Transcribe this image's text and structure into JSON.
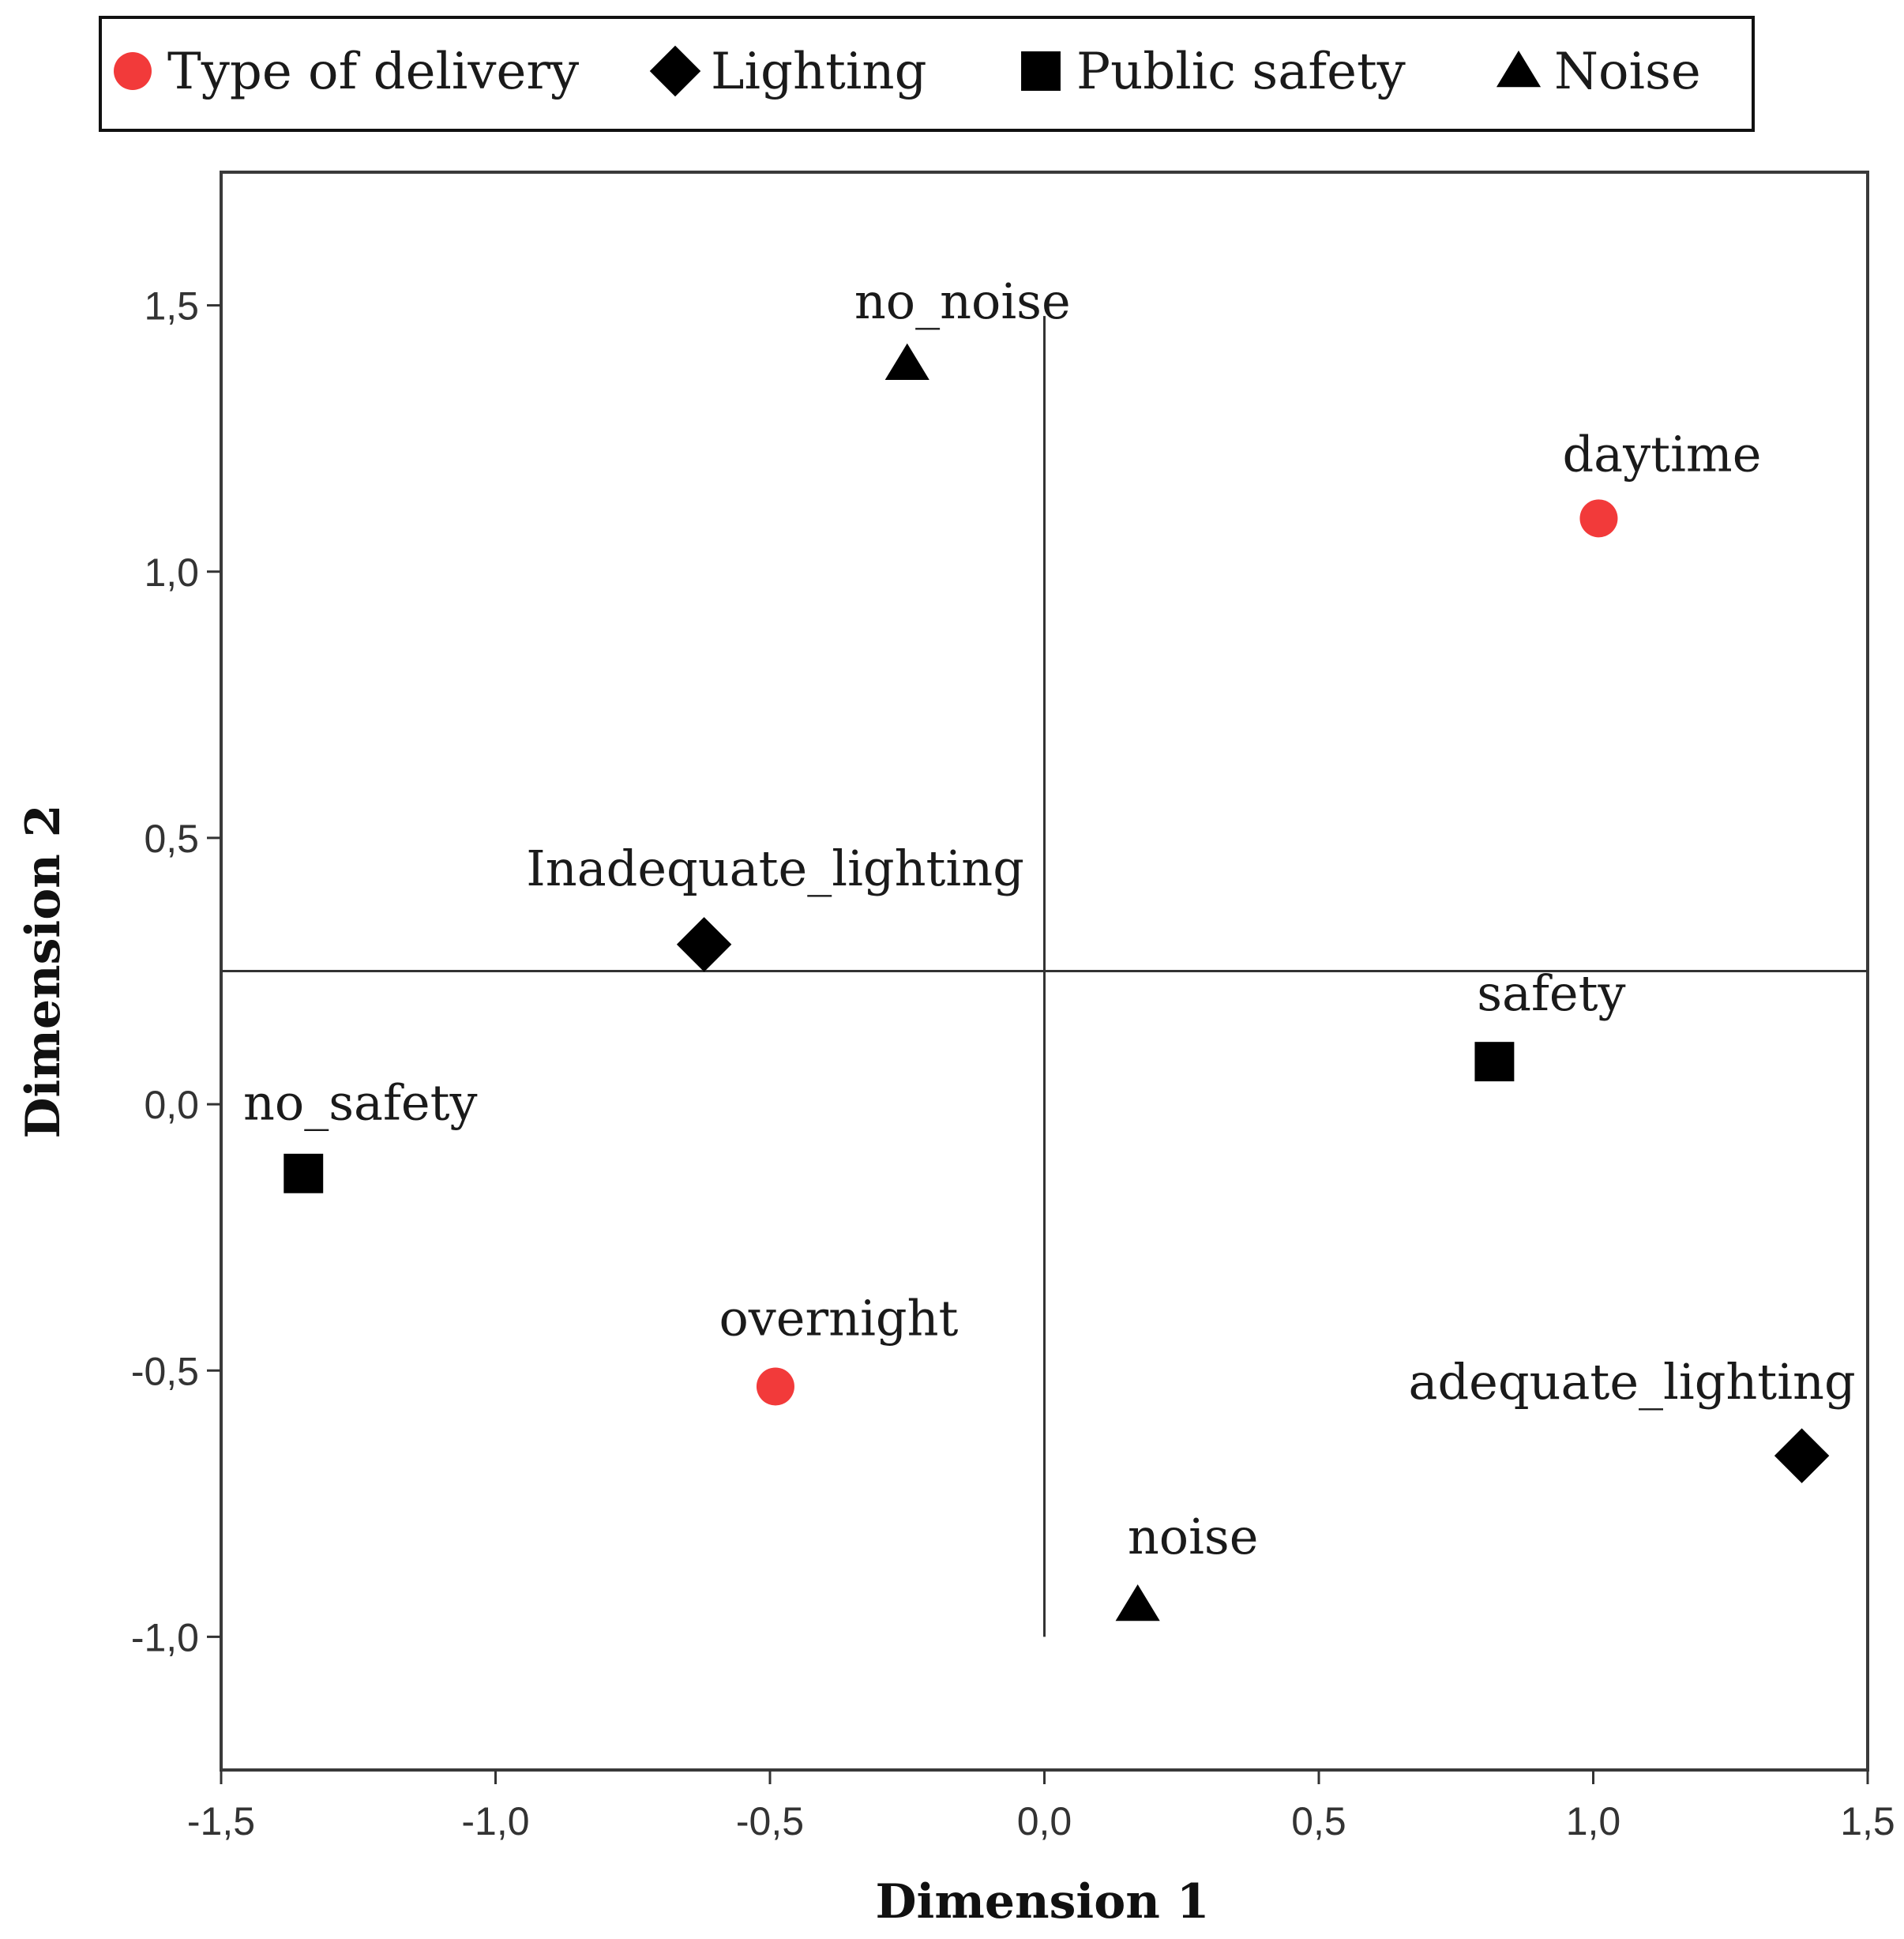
{
  "chart_data": {
    "type": "scatter",
    "title": "",
    "xlabel": "Dimension 1",
    "ylabel": "Dimension 2",
    "xlim": [
      -1.5,
      1.5
    ],
    "ylim": [
      -1.25,
      1.75
    ],
    "xticks": [
      -1.5,
      -1.0,
      -0.5,
      0.0,
      0.5,
      1.0,
      1.5
    ],
    "xtick_labels": [
      "-1,5",
      "-1,0",
      "-0,5",
      "0,0",
      "0,5",
      "1,0",
      "1,5"
    ],
    "yticks": [
      -1.0,
      -0.5,
      0.0,
      0.5,
      1.0,
      1.5
    ],
    "ytick_labels": [
      "-1,0",
      "-0,5",
      "0,0",
      "0,5",
      "1,0",
      "1,5"
    ],
    "grid": false,
    "reference_lines": {
      "vertical_x": 0.0,
      "vertical_y_range": [
        -1.0,
        1.48
      ],
      "horizontal_y": 0.25
    },
    "legend": {
      "position": "top",
      "entries": [
        {
          "name": "Type of delivery",
          "marker": "circle",
          "color": "#f23a3a"
        },
        {
          "name": "Lighting",
          "marker": "diamond",
          "color": "#000000"
        },
        {
          "name": "Public safety",
          "marker": "square",
          "color": "#000000"
        },
        {
          "name": "Noise",
          "marker": "triangle",
          "color": "#000000"
        }
      ]
    },
    "series": [
      {
        "name": "Type of delivery",
        "marker": "circle",
        "color": "#f23a3a",
        "points": [
          {
            "label": "daytime",
            "x": 1.01,
            "y": 1.1
          },
          {
            "label": "overnight",
            "x": -0.49,
            "y": -0.53
          }
        ]
      },
      {
        "name": "Lighting",
        "marker": "diamond",
        "color": "#000000",
        "points": [
          {
            "label": "Inadequate_lighting",
            "x": -0.62,
            "y": 0.3
          },
          {
            "label": "adequate_lighting",
            "x": 1.38,
            "y": -0.66
          }
        ]
      },
      {
        "name": "Public safety",
        "marker": "square",
        "color": "#000000",
        "points": [
          {
            "label": "safety",
            "x": 0.82,
            "y": 0.08
          },
          {
            "label": "no_safety",
            "x": -1.35,
            "y": -0.13
          }
        ]
      },
      {
        "name": "Noise",
        "marker": "triangle",
        "color": "#000000",
        "points": [
          {
            "label": "no_noise",
            "x": -0.25,
            "y": 1.39
          },
          {
            "label": "noise",
            "x": 0.17,
            "y": -0.94
          }
        ]
      }
    ]
  }
}
